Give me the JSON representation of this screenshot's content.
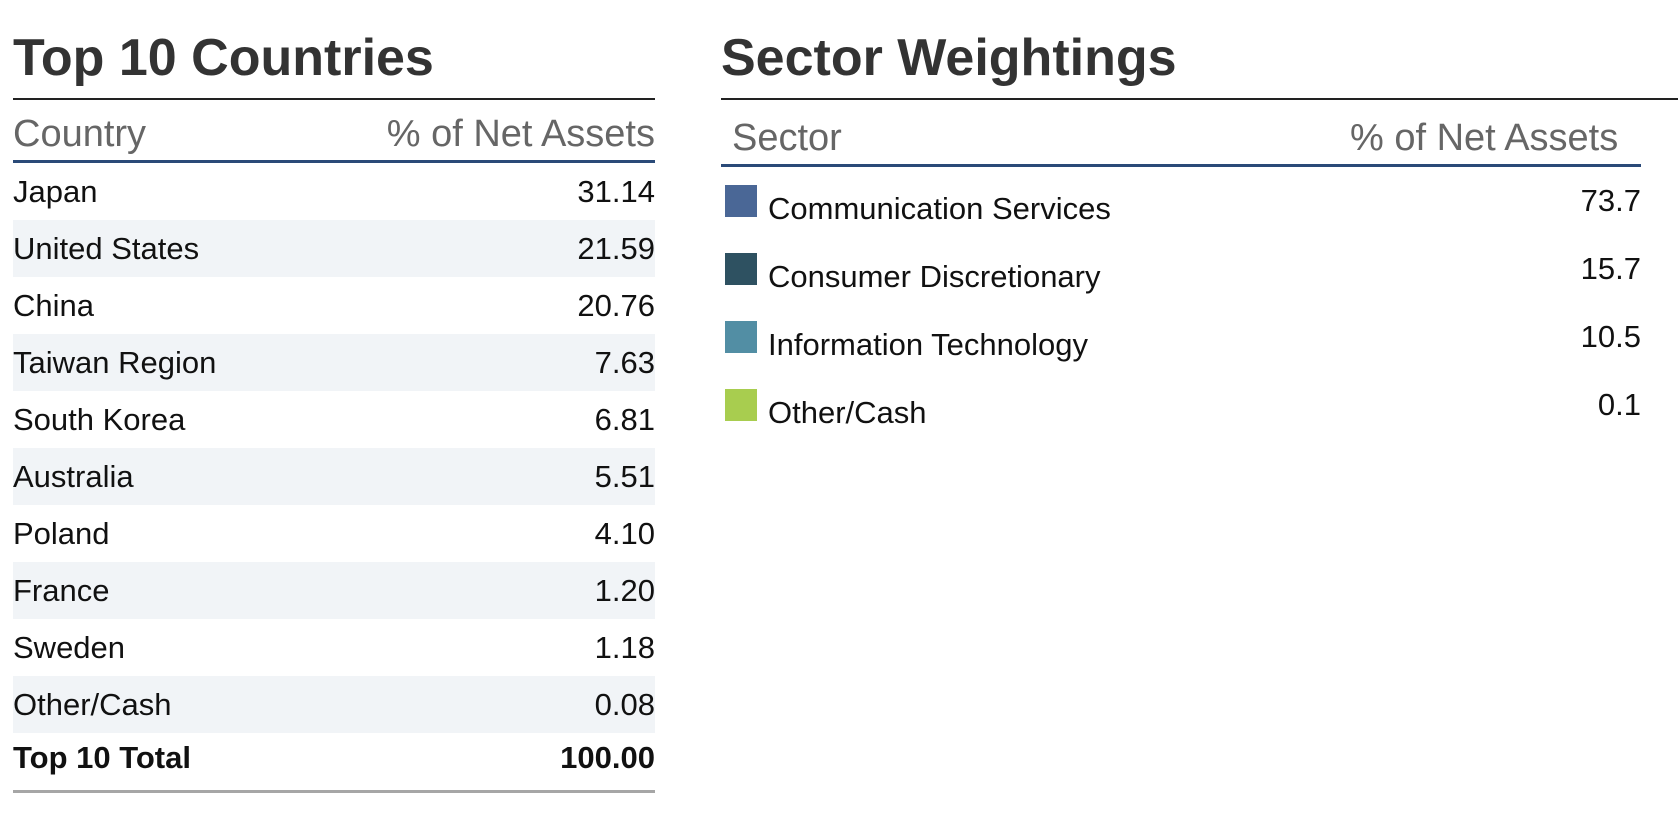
{
  "countries": {
    "title": "Top 10 Countries",
    "col_country": "Country",
    "col_pct": "% of Net Assets",
    "rows": [
      {
        "name": "Japan",
        "value": "31.14"
      },
      {
        "name": "United States",
        "value": "21.59"
      },
      {
        "name": "China",
        "value": "20.76"
      },
      {
        "name": "Taiwan Region",
        "value": "7.63"
      },
      {
        "name": "South Korea",
        "value": "6.81"
      },
      {
        "name": "Australia",
        "value": "5.51"
      },
      {
        "name": "Poland",
        "value": "4.10"
      },
      {
        "name": "France",
        "value": "1.20"
      },
      {
        "name": "Sweden",
        "value": "1.18"
      },
      {
        "name": "Other/Cash",
        "value": "0.08"
      }
    ],
    "total": {
      "name": "Top 10 Total",
      "value": "100.00"
    }
  },
  "sectors": {
    "title": "Sector Weightings",
    "col_sector": "Sector",
    "col_pct": "% of Net Assets",
    "rows": [
      {
        "name": "Communication Services",
        "value": "73.7",
        "color": "#4a6796"
      },
      {
        "name": "Consumer Discretionary",
        "value": "15.7",
        "color": "#2e5161"
      },
      {
        "name": "Information Technology",
        "value": "10.5",
        "color": "#528ea4"
      },
      {
        "name": "Other/Cash",
        "value": "0.1",
        "color": "#a8cd4f"
      }
    ]
  }
}
